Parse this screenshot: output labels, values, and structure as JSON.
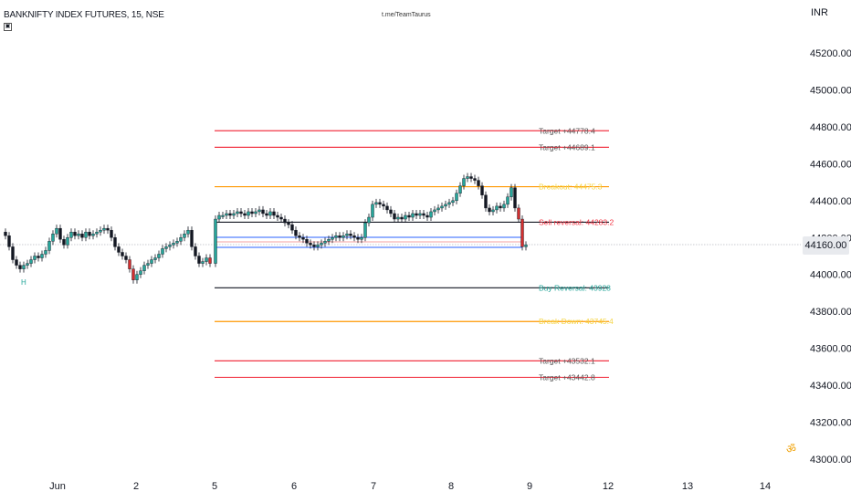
{
  "header": {
    "title": "BANKNIFTY INDEX FUTURES, 15, NSE",
    "watermark": "t.me/TeamTaurus",
    "currency": "INR"
  },
  "price_axis": {
    "ticks": [
      "45200.00",
      "45000.00",
      "44800.00",
      "44600.00",
      "44400.00",
      "44200.00",
      "44000.00",
      "43800.00",
      "43600.00",
      "43400.00",
      "43200.00",
      "43000.00"
    ],
    "current_price": "44160.00"
  },
  "time_axis": {
    "ticks": [
      "Jun",
      "2",
      "5",
      "6",
      "7",
      "8",
      "9",
      "12",
      "13",
      "14"
    ]
  },
  "levels": [
    {
      "label": "Target +44778.4",
      "price": 44778.4,
      "color": "#f23645",
      "label_color": "#555555"
    },
    {
      "label": "Target +44689.1",
      "price": 44689.1,
      "color": "#f23645",
      "label_color": "#555555"
    },
    {
      "label": "Breakout: 44475.3",
      "price": 44475.3,
      "color": "#ff9800",
      "label_color": "#f5d547"
    },
    {
      "label": "Sell reversal: 44283.2",
      "price": 44283.2,
      "color": "#131722",
      "label_color": "#f23645"
    },
    {
      "label": "Buy Reversal: 43928",
      "price": 43928,
      "color": "#131722",
      "label_color": "#26a69a"
    },
    {
      "label": "Break Down: 43745.4",
      "price": 43745.4,
      "color": "#ff9800",
      "label_color": "#f5d547"
    },
    {
      "label": "Target +43532.1",
      "price": 43532.1,
      "color": "#f23645",
      "label_color": "#555555"
    },
    {
      "label": "Target +43442.8",
      "price": 43442.8,
      "color": "#f23645",
      "label_color": "#555555"
    }
  ],
  "markers": {
    "h_label": "H",
    "om_symbol": "ॐ"
  },
  "colors": {
    "up": "#26a69a",
    "down": "#131722",
    "red_bar": "#d32f2f",
    "blue_line": "#2962ff"
  }
}
